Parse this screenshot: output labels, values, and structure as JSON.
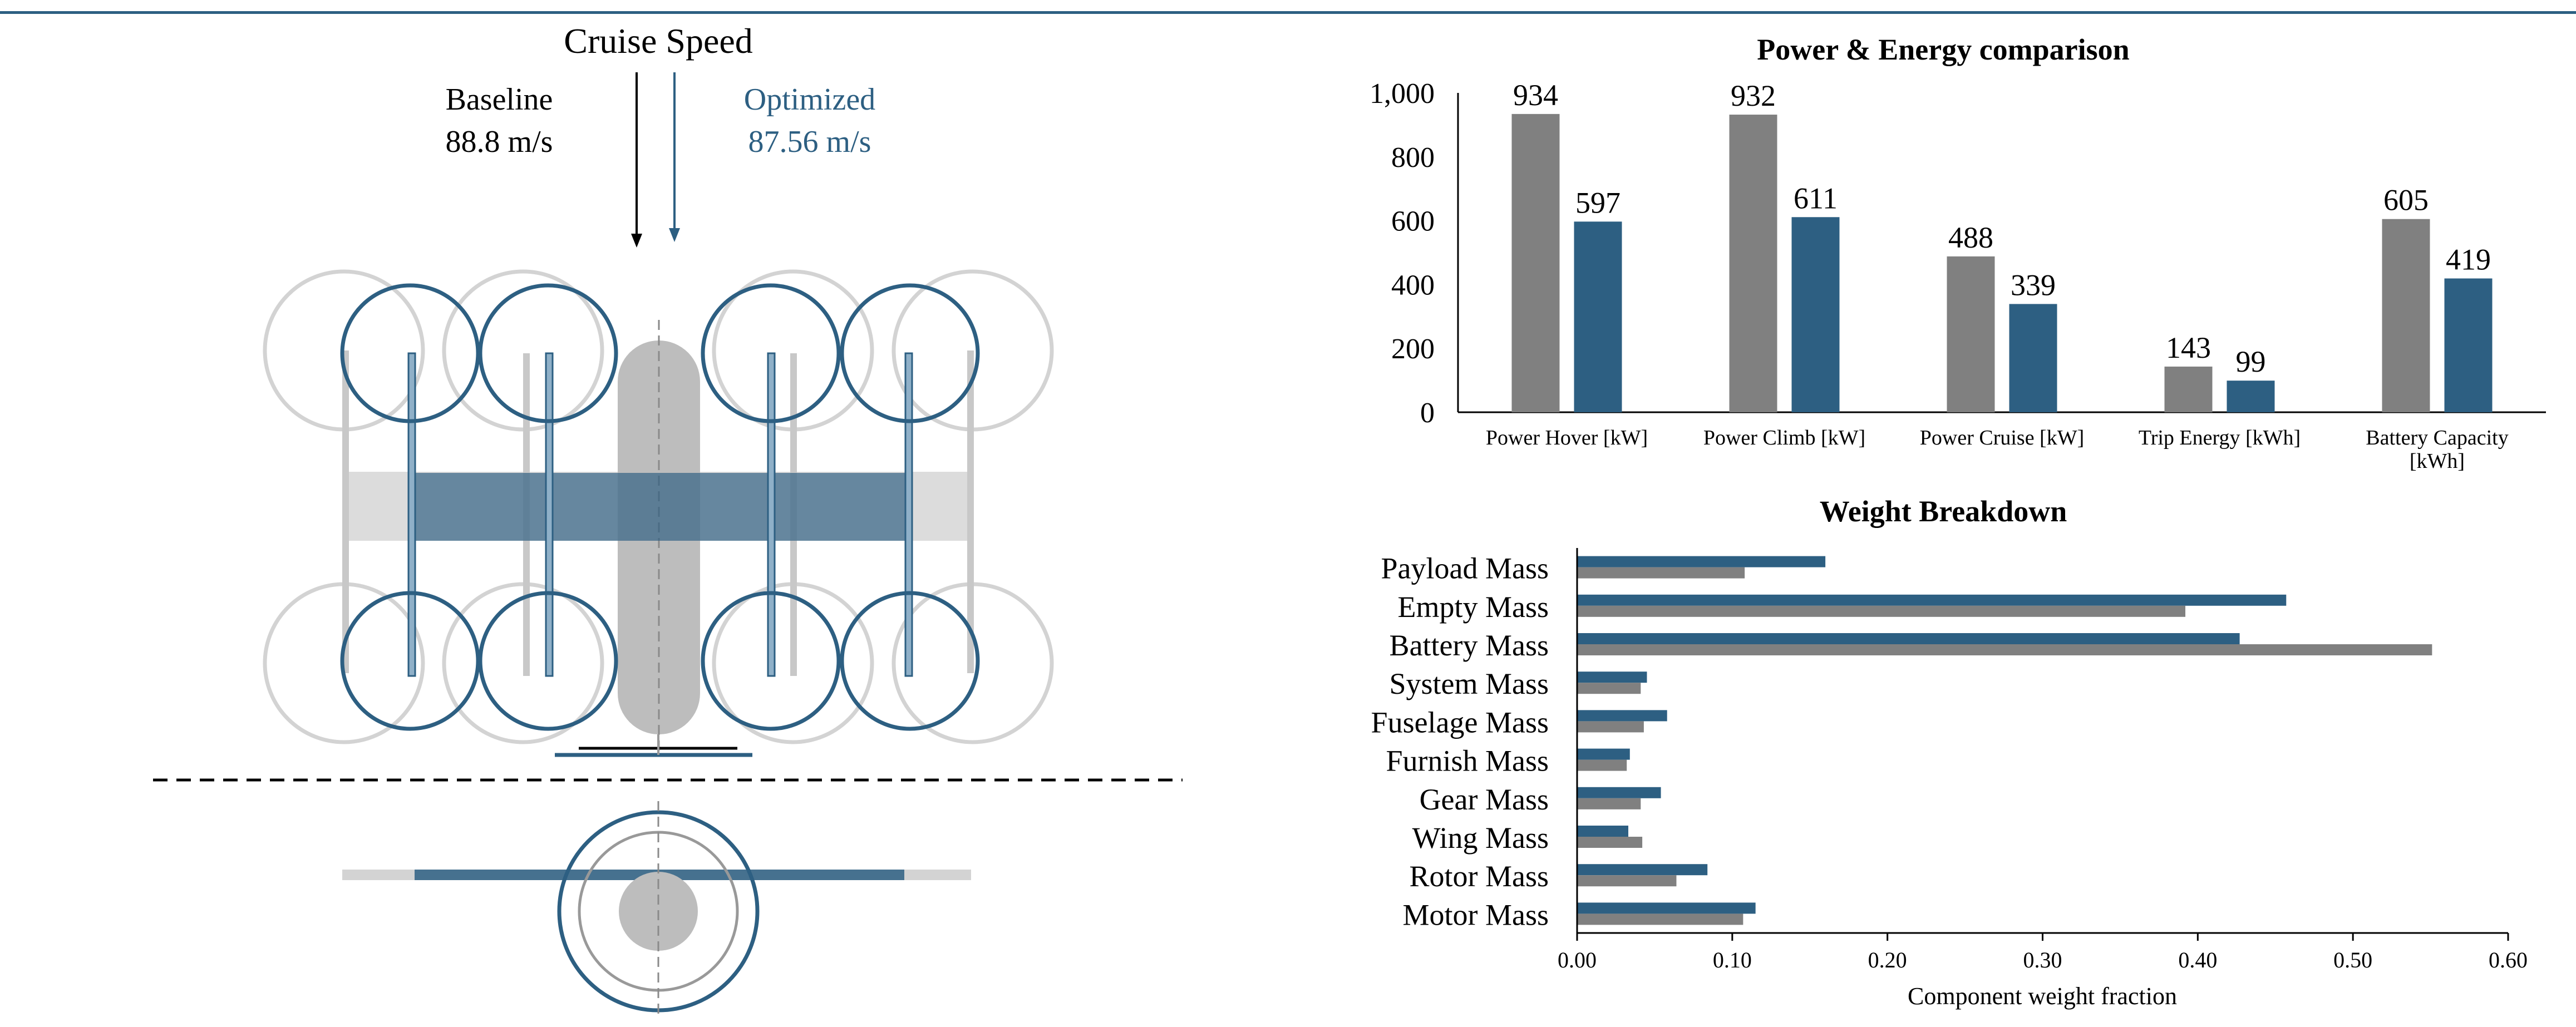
{
  "colors": {
    "baseline": "#808080",
    "optimized": "#2d5f82",
    "light_gray": "#d3d3d3",
    "mid_gray": "#bfbfbf",
    "top_rule": "#2d5f82"
  },
  "diagram": {
    "title": "Cruise Speed",
    "baseline_label": "Baseline",
    "baseline_speed": "88.8 m/s",
    "optimized_label": "Optimized",
    "optimized_speed": "87.56 m/s"
  },
  "chart_data": [
    {
      "type": "bar",
      "title": "Power & Energy comparison",
      "categories": [
        "Power Hover [kW]",
        "Power Climb [kW]",
        "Power Cruise [kW]",
        "Trip Energy [kWh]",
        "Battery Capacity [kWh]"
      ],
      "category_lines": [
        [
          "Power Hover [kW]"
        ],
        [
          "Power Climb [kW]"
        ],
        [
          "Power Cruise [kW]"
        ],
        [
          "Trip Energy [kWh]"
        ],
        [
          "Battery Capacity",
          "[kWh]"
        ]
      ],
      "series": [
        {
          "values": [
            934,
            932,
            488,
            143,
            605
          ],
          "color": "#808080"
        },
        {
          "values": [
            597,
            611,
            339,
            99,
            419
          ],
          "color": "#2d5f82"
        }
      ],
      "ylim": [
        0,
        1000
      ],
      "yticks": [
        0,
        200,
        400,
        600,
        800,
        1000
      ],
      "ytick_labels": [
        "0",
        "200",
        "400",
        "600",
        "800",
        "1,000"
      ],
      "data_labels": true,
      "grid": false
    },
    {
      "type": "bar",
      "orientation": "horizontal",
      "title": "Weight Breakdown",
      "categories": [
        "Payload Mass",
        "Empty Mass",
        "Battery Mass",
        "System Mass",
        "Fuselage Mass",
        "Furnish Mass",
        "Gear Mass",
        "Wing Mass",
        "Rotor Mass",
        "Motor Mass"
      ],
      "series": [
        {
          "values": [
            0.16,
            0.457,
            0.427,
            0.045,
            0.058,
            0.034,
            0.054,
            0.033,
            0.084,
            0.115
          ],
          "color": "#2d5f82"
        },
        {
          "values": [
            0.108,
            0.392,
            0.551,
            0.041,
            0.043,
            0.032,
            0.041,
            0.042,
            0.064,
            0.107
          ],
          "color": "#808080"
        }
      ],
      "xlabel": "Component weight fraction",
      "xlim": [
        0,
        0.6
      ],
      "xticks": [
        0,
        0.1,
        0.2,
        0.3,
        0.4,
        0.5,
        0.6
      ],
      "xtick_labels": [
        "0.00",
        "0.10",
        "0.20",
        "0.30",
        "0.40",
        "0.50",
        "0.60"
      ],
      "grid": false
    }
  ]
}
